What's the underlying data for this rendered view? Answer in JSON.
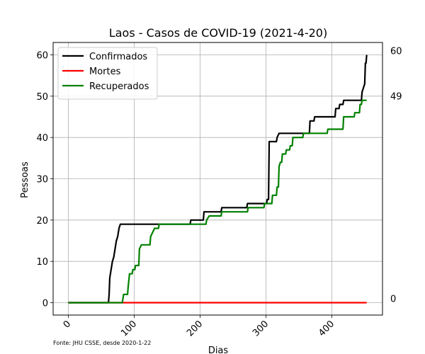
{
  "chart_data": {
    "type": "line",
    "title": "Laos - Casos de COVID-19 (2021-4-20)",
    "xlabel": "Dias",
    "ylabel": "Pessoas",
    "xlim": [
      -23,
      477
    ],
    "ylim": [
      -3,
      63
    ],
    "xticks": [
      0,
      100,
      200,
      300,
      400
    ],
    "xtick_labels": [
      "0",
      "100",
      "200",
      "300",
      "400"
    ],
    "yticks": [
      0,
      10,
      20,
      30,
      40,
      50,
      60
    ],
    "ytick_labels": [
      "0",
      "10",
      "20",
      "30",
      "40",
      "50",
      "60"
    ],
    "grid": true,
    "legend_position": "upper-left",
    "source_note": "Fonte: JHU CSSE, desde 2020-1-22",
    "side_labels": [
      {
        "value": 60,
        "text": "60"
      },
      {
        "value": 49,
        "text": "49"
      },
      {
        "value": 0,
        "text": "0"
      }
    ],
    "series": [
      {
        "name": "Confirmados",
        "color": "#000000",
        "points": [
          [
            0,
            0
          ],
          [
            61,
            0
          ],
          [
            62,
            2
          ],
          [
            63,
            6
          ],
          [
            65,
            8
          ],
          [
            67,
            10
          ],
          [
            69,
            11
          ],
          [
            71,
            13
          ],
          [
            73,
            15
          ],
          [
            75,
            16
          ],
          [
            77,
            18
          ],
          [
            79,
            19
          ],
          [
            185,
            19
          ],
          [
            186,
            20
          ],
          [
            205,
            20
          ],
          [
            206,
            22
          ],
          [
            232,
            22
          ],
          [
            233,
            23
          ],
          [
            271,
            23
          ],
          [
            272,
            24
          ],
          [
            301,
            24
          ],
          [
            302,
            25
          ],
          [
            304,
            25
          ],
          [
            305,
            39
          ],
          [
            316,
            39
          ],
          [
            317,
            40
          ],
          [
            320,
            41
          ],
          [
            366,
            41
          ],
          [
            367,
            44
          ],
          [
            373,
            44
          ],
          [
            374,
            45
          ],
          [
            405,
            45
          ],
          [
            406,
            47
          ],
          [
            411,
            47
          ],
          [
            412,
            48
          ],
          [
            417,
            48
          ],
          [
            418,
            49
          ],
          [
            445,
            49
          ],
          [
            446,
            51
          ],
          [
            448,
            52
          ],
          [
            450,
            53
          ],
          [
            451,
            58
          ],
          [
            452,
            58
          ],
          [
            453,
            60
          ]
        ]
      },
      {
        "name": "Mortes",
        "color": "#ff0000",
        "points": [
          [
            0,
            0
          ],
          [
            453,
            0
          ]
        ]
      },
      {
        "name": "Recuperados",
        "color": "#008000",
        "points": [
          [
            0,
            0
          ],
          [
            82,
            0
          ],
          [
            84,
            2
          ],
          [
            90,
            2
          ],
          [
            91,
            4
          ],
          [
            93,
            7
          ],
          [
            97,
            7
          ],
          [
            98,
            8
          ],
          [
            101,
            8
          ],
          [
            102,
            9
          ],
          [
            107,
            9
          ],
          [
            108,
            13
          ],
          [
            111,
            14
          ],
          [
            124,
            14
          ],
          [
            125,
            16
          ],
          [
            131,
            18
          ],
          [
            137,
            18
          ],
          [
            138,
            19
          ],
          [
            209,
            19
          ],
          [
            210,
            20
          ],
          [
            214,
            21
          ],
          [
            232,
            21
          ],
          [
            233,
            22
          ],
          [
            272,
            22
          ],
          [
            273,
            23
          ],
          [
            297,
            23
          ],
          [
            298,
            24
          ],
          [
            309,
            24
          ],
          [
            310,
            26
          ],
          [
            316,
            26
          ],
          [
            317,
            28
          ],
          [
            319,
            28
          ],
          [
            320,
            33
          ],
          [
            322,
            34
          ],
          [
            324,
            34
          ],
          [
            325,
            36
          ],
          [
            330,
            36
          ],
          [
            331,
            37
          ],
          [
            336,
            37
          ],
          [
            337,
            38
          ],
          [
            340,
            38
          ],
          [
            341,
            40
          ],
          [
            356,
            40
          ],
          [
            357,
            41
          ],
          [
            393,
            41
          ],
          [
            394,
            42
          ],
          [
            417,
            42
          ],
          [
            418,
            45
          ],
          [
            434,
            45
          ],
          [
            435,
            46
          ],
          [
            442,
            46
          ],
          [
            443,
            48
          ],
          [
            445,
            48
          ],
          [
            446,
            49
          ],
          [
            453,
            49
          ]
        ]
      }
    ]
  }
}
